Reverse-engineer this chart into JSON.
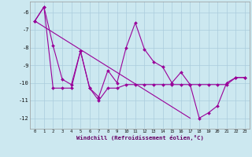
{
  "xlabel": "Windchill (Refroidissement éolien,°C)",
  "bg_color": "#cce8f0",
  "grid_color": "#aaccdd",
  "line_color": "#990099",
  "x": [
    0,
    1,
    2,
    3,
    4,
    5,
    6,
    7,
    8,
    9,
    10,
    11,
    12,
    13,
    14,
    15,
    16,
    17,
    18,
    19,
    20,
    21,
    22,
    23
  ],
  "line1": [
    -6.5,
    -5.7,
    -7.9,
    -9.8,
    -10.1,
    -8.2,
    -10.3,
    -10.8,
    -9.3,
    -10.0,
    -8.0,
    -6.6,
    -8.1,
    -8.8,
    -9.1,
    -10.0,
    -9.4,
    -10.1,
    -12.0,
    -11.7,
    -11.3,
    -10.0,
    -9.7,
    -9.7
  ],
  "line2": [
    -6.5,
    -5.7,
    -10.3,
    -10.3,
    -10.3,
    -8.2,
    -10.3,
    -11.0,
    -10.3,
    -10.3,
    -10.1,
    -10.1,
    -10.1,
    -10.1,
    -10.1,
    -10.1,
    -10.1,
    -10.1,
    -10.1,
    -10.1,
    -10.1,
    -10.1,
    -9.7,
    -9.7
  ],
  "trend_x": [
    0,
    17
  ],
  "trend_y": [
    -6.5,
    -12.0
  ],
  "ylim": [
    -12.6,
    -5.4
  ],
  "xlim": [
    -0.5,
    23.5
  ],
  "yticks": [
    -12,
    -11,
    -10,
    -9,
    -8,
    -7,
    -6
  ],
  "xticks": [
    0,
    1,
    2,
    3,
    4,
    5,
    6,
    7,
    8,
    9,
    10,
    11,
    12,
    13,
    14,
    15,
    16,
    17,
    18,
    19,
    20,
    21,
    22,
    23
  ],
  "fig_width": 3.2,
  "fig_height": 2.0,
  "dpi": 100
}
